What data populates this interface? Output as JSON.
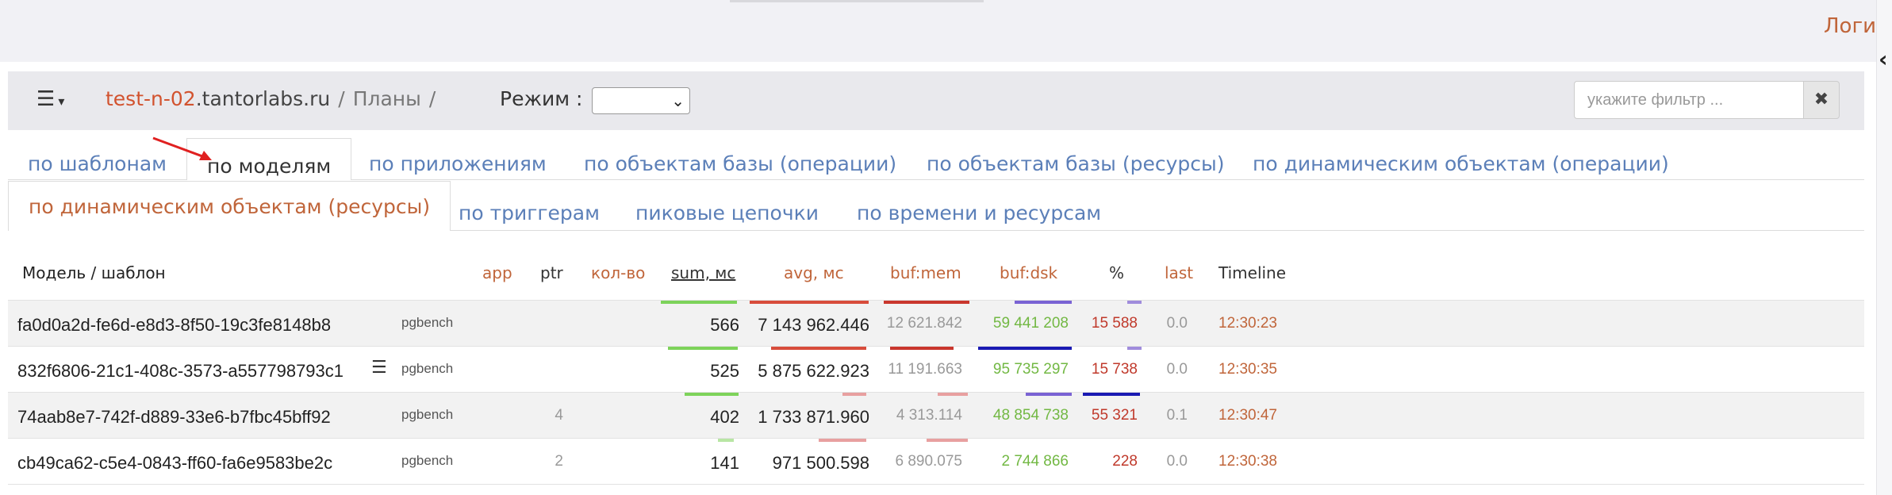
{
  "header": {
    "login_text": "Логи",
    "collapse_icon": "chevron-left-icon"
  },
  "toolbar": {
    "menu_icon": "list-icon",
    "host_prefix": "test-n-02",
    "host_suffix": ".tantorlabs.ru",
    "sep1": "/",
    "plans": "Планы",
    "sep2": "/",
    "mode_label": "Режим :",
    "mode_value": "",
    "filter_placeholder": "укажите фильтр ...",
    "clear_icon": "times-icon"
  },
  "tabs": [
    {
      "label": "по шаблонам"
    },
    {
      "label": "по моделям"
    },
    {
      "label": "по приложениям"
    },
    {
      "label": "по объектам базы (операции)"
    },
    {
      "label": "по объектам базы (ресурсы)"
    },
    {
      "label": "по динамическим объектам (операции)"
    },
    {
      "label": "по динамическим объектам (ресурсы)"
    },
    {
      "label": "по триггерам"
    },
    {
      "label": "пиковые цепочки"
    },
    {
      "label": "по времени и ресурсам"
    }
  ],
  "table": {
    "headers": {
      "model": "Модель / шаблон",
      "app": "app",
      "ptr": "ptr",
      "count": "кол-во",
      "sum": "sum, мс",
      "avg": "avg, мс",
      "bufmem": "buf:mem",
      "bufdsk": "buf:dsk",
      "pct": "%",
      "last": "last",
      "timeline": "Timeline"
    },
    "rows": [
      {
        "model": "fa0d0a2d-fe6d-e8d3-8f50-19c3fe8148b8",
        "list_icon": "",
        "app": "pgbench",
        "count": "",
        "sum": "566",
        "avg": "7 143 962.446",
        "bufmem": "12 621.842",
        "bufdsk": "59 441 208",
        "pct": "15 588",
        "last": "0.0",
        "timeline": "12:30:23"
      },
      {
        "model": "832f6806-21c1-408c-3573-a557798793c1",
        "list_icon": "list-icon",
        "app": "pgbench",
        "count": "",
        "sum": "525",
        "avg": "5 875 622.923",
        "bufmem": "11 191.663",
        "bufdsk": "95 735 297",
        "pct": "15 738",
        "last": "0.0",
        "timeline": "12:30:35"
      },
      {
        "model": "74aab8e7-742f-d889-33e6-b7fbc45bff92",
        "list_icon": "",
        "app": "pgbench",
        "count": "4",
        "sum": "402",
        "avg": "1 733 871.960",
        "bufmem": "4 313.114",
        "bufdsk": "48 854 738",
        "pct": "55 321",
        "last": "0.1",
        "timeline": "12:30:47"
      },
      {
        "model": "cb49ca62-c5e4-0843-ff60-fa6e9583be2c",
        "list_icon": "",
        "app": "pgbench",
        "count": "2",
        "sum": "141",
        "avg": "971 500.598",
        "bufmem": "6 890.075",
        "bufdsk": "2 744 866",
        "pct": "228",
        "last": "0.0",
        "timeline": "12:30:38"
      }
    ]
  },
  "colors": {
    "host": "#d2532f",
    "tab_link": "#5b7fb8",
    "sum_bar": "#7dd35a",
    "avg_bar": "#d84c3b",
    "bufmem_bar": "#c9362d",
    "bufdsk_bar": "#1a1ab3",
    "bufdsk_text": "#72b843",
    "pct_text": "#c0392b",
    "timeline_text": "#c0653a",
    "header_orange": "#c0653a"
  }
}
